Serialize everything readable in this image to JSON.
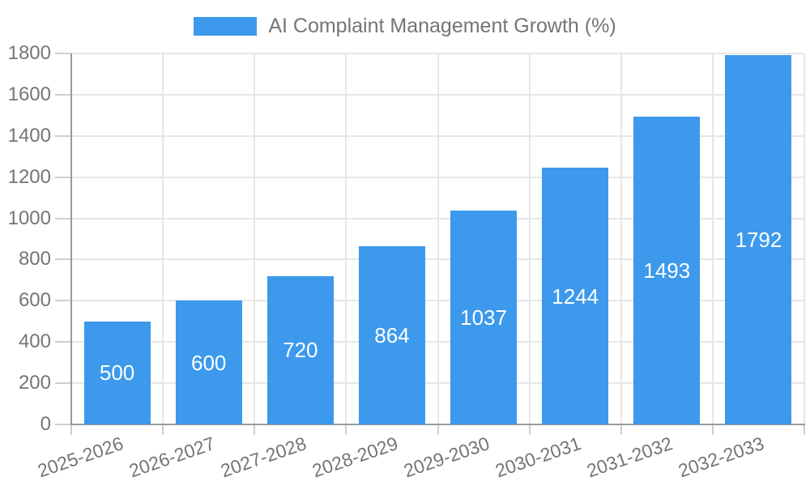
{
  "chart_data": {
    "type": "bar",
    "legend_label": "AI Complaint Management Growth (%)",
    "legend_position": "top-center",
    "categories": [
      "2025-2026",
      "2026-2027",
      "2027-2028",
      "2028-2029",
      "2029-2030",
      "2030-2031",
      "2031-2032",
      "2032-2033"
    ],
    "values": [
      500,
      600,
      720,
      864,
      1037,
      1244,
      1493,
      1792
    ],
    "value_labels_shown": true,
    "xlabel": "",
    "ylabel": "",
    "ylim": [
      0,
      1800
    ],
    "ytick_step": 200,
    "yticks": [
      0,
      200,
      400,
      600,
      800,
      1000,
      1200,
      1400,
      1600,
      1800
    ],
    "grid": true,
    "x_label_rotation_deg": -19,
    "colors": {
      "bar": "#3c99ec",
      "value_label": "#ffffff",
      "tick_text": "#757575",
      "axis_line": "#9a9a9a",
      "gridline": "#e6e6e6",
      "tick_mark": "#cfcfcf",
      "background": "#ffffff"
    }
  }
}
